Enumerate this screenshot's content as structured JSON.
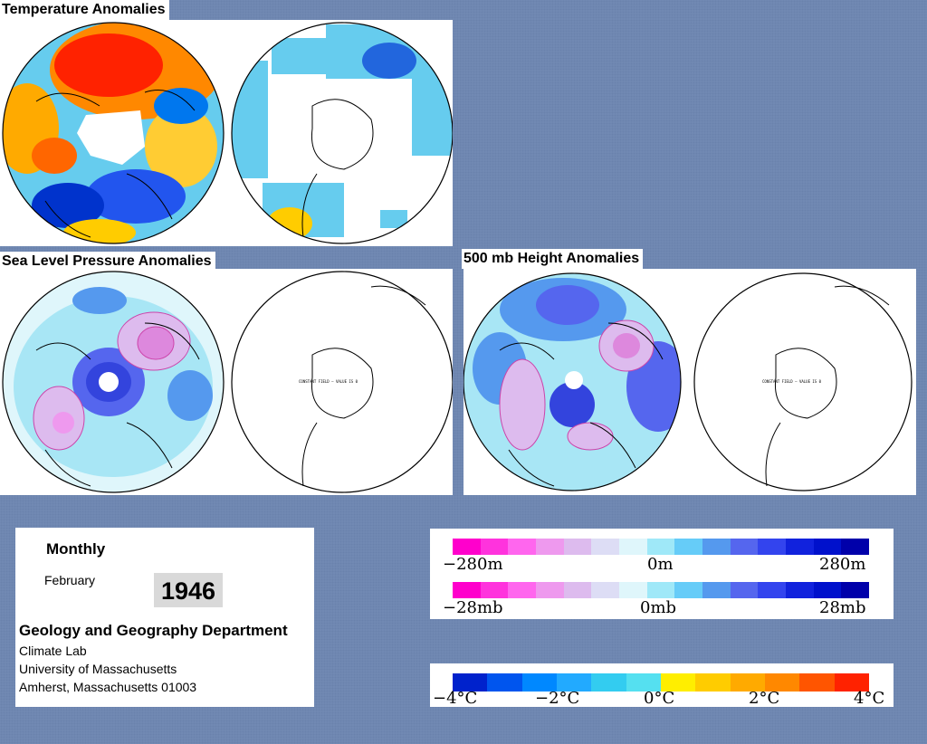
{
  "titles": {
    "temperature": "Temperature Anomalies",
    "slp": "Sea Level Pressure Anomalies",
    "height": "500 mb Height Anomalies"
  },
  "map_notes": {
    "constant_field": "CONSTANT FIELD — VALUE IS 0"
  },
  "info": {
    "period": "Monthly",
    "month": "February",
    "year": "1946",
    "department": "Geology and Geography Department",
    "lines": [
      "Climate Lab",
      "University of Massachusetts",
      "Amherst, Massachusetts 01003"
    ]
  },
  "legends": {
    "height_scale": {
      "min": "−280m",
      "mid": "0m",
      "max": "280m"
    },
    "pressure_scale": {
      "min": "−28mb",
      "mid": "0mb",
      "max": "28mb"
    },
    "temperature_scale": {
      "labels": [
        "−4°C",
        "−2°C",
        "0°C",
        "2°C",
        "4°C"
      ]
    }
  },
  "colors": {
    "background": "#7189b3",
    "pressure_steps": [
      "#ff00cc",
      "#ff33dd",
      "#ff66ee",
      "#ee99ee",
      "#ddbbee",
      "#ddddf5",
      "#dff6fb",
      "#9fe8f8",
      "#66ccf8",
      "#5599ee",
      "#5566ee",
      "#3344ee",
      "#1122dd",
      "#0011cc",
      "#0000aa"
    ],
    "temperature_steps": [
      "#0022cc",
      "#0055ee",
      "#0088ff",
      "#22aaff",
      "#33ccf0",
      "#55e0f0",
      "#ffee00",
      "#ffcc00",
      "#ffaa00",
      "#ff8800",
      "#ff5500",
      "#ff2200"
    ]
  }
}
